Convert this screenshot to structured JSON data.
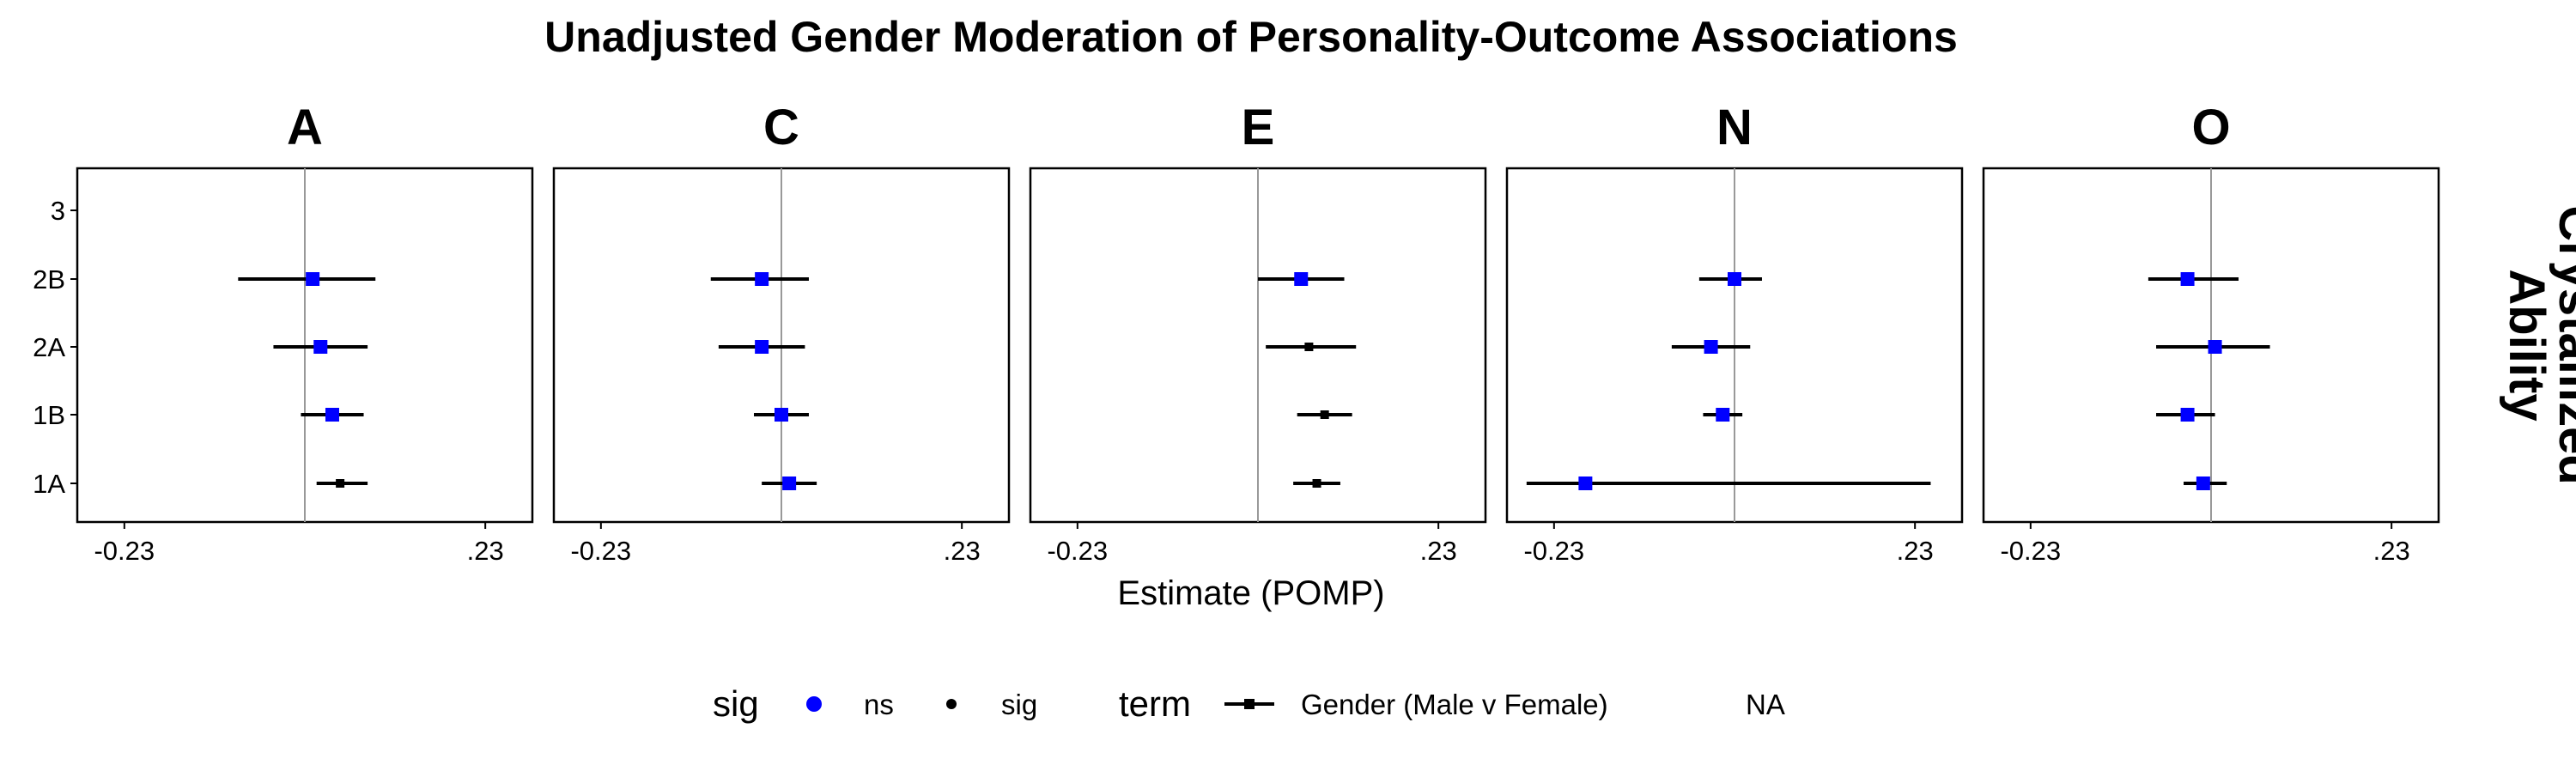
{
  "chart_data": {
    "type": "scatter",
    "title": "Unadjusted Gender Moderation of Personality-Outcome Associations",
    "xlabel": "Estimate (POMP)",
    "strip_right_label": [
      "Crystallized",
      "Ability"
    ],
    "panels": [
      "A",
      "C",
      "E",
      "N",
      "O"
    ],
    "y_categories": [
      "3",
      "2B",
      "2A",
      "1B",
      "1A"
    ],
    "x_ticks": [
      {
        "value": -0.23,
        "label": "-0.23"
      },
      {
        "value": 0.23,
        "label": ".23"
      }
    ],
    "xlim": [
      -0.29,
      0.29
    ],
    "reference_line": 0,
    "grid": false,
    "legend": {
      "position": "bottom",
      "sig_title": "sig",
      "sig_items": [
        {
          "label": "ns",
          "color": "#0000ff"
        },
        {
          "label": "sig",
          "color": "#000000"
        }
      ],
      "term_title": "term",
      "term_items": [
        {
          "label": "Gender (Male v Female)"
        },
        {
          "label": "NA"
        }
      ]
    },
    "colors": {
      "ns": "#0000ff",
      "sig": "#000000",
      "errorbar": "#000000",
      "refline": "#999999"
    },
    "points": [
      {
        "panel": "A",
        "category": "2B",
        "estimate": 0.01,
        "low": -0.085,
        "high": 0.09,
        "sig": "ns"
      },
      {
        "panel": "A",
        "category": "2A",
        "estimate": 0.02,
        "low": -0.04,
        "high": 0.08,
        "sig": "ns"
      },
      {
        "panel": "A",
        "category": "1B",
        "estimate": 0.035,
        "low": -0.005,
        "high": 0.075,
        "sig": "ns"
      },
      {
        "panel": "A",
        "category": "1A",
        "estimate": 0.045,
        "low": 0.015,
        "high": 0.08,
        "sig": "sig"
      },
      {
        "panel": "C",
        "category": "2B",
        "estimate": -0.025,
        "low": -0.09,
        "high": 0.035,
        "sig": "ns"
      },
      {
        "panel": "C",
        "category": "2A",
        "estimate": -0.025,
        "low": -0.08,
        "high": 0.03,
        "sig": "ns"
      },
      {
        "panel": "C",
        "category": "1B",
        "estimate": 0.0,
        "low": -0.035,
        "high": 0.035,
        "sig": "ns"
      },
      {
        "panel": "C",
        "category": "1A",
        "estimate": 0.01,
        "low": -0.025,
        "high": 0.045,
        "sig": "ns"
      },
      {
        "panel": "E",
        "category": "2B",
        "estimate": 0.055,
        "low": 0.0,
        "high": 0.11,
        "sig": "ns"
      },
      {
        "panel": "E",
        "category": "2A",
        "estimate": 0.065,
        "low": 0.01,
        "high": 0.125,
        "sig": "sig"
      },
      {
        "panel": "E",
        "category": "1B",
        "estimate": 0.085,
        "low": 0.05,
        "high": 0.12,
        "sig": "sig"
      },
      {
        "panel": "E",
        "category": "1A",
        "estimate": 0.075,
        "low": 0.045,
        "high": 0.105,
        "sig": "sig"
      },
      {
        "panel": "N",
        "category": "2B",
        "estimate": 0.0,
        "low": -0.045,
        "high": 0.035,
        "sig": "ns"
      },
      {
        "panel": "N",
        "category": "2A",
        "estimate": -0.03,
        "low": -0.08,
        "high": 0.02,
        "sig": "ns"
      },
      {
        "panel": "N",
        "category": "1B",
        "estimate": -0.015,
        "low": -0.04,
        "high": 0.01,
        "sig": "ns"
      },
      {
        "panel": "N",
        "category": "1A",
        "estimate": -0.19,
        "low": -0.265,
        "high": 0.25,
        "sig": "ns"
      },
      {
        "panel": "O",
        "category": "2B",
        "estimate": -0.03,
        "low": -0.08,
        "high": 0.035,
        "sig": "ns"
      },
      {
        "panel": "O",
        "category": "2A",
        "estimate": 0.005,
        "low": -0.07,
        "high": 0.075,
        "sig": "ns"
      },
      {
        "panel": "O",
        "category": "1B",
        "estimate": -0.03,
        "low": -0.07,
        "high": 0.005,
        "sig": "ns"
      },
      {
        "panel": "O",
        "category": "1A",
        "estimate": -0.01,
        "low": -0.035,
        "high": 0.02,
        "sig": "ns"
      }
    ]
  }
}
